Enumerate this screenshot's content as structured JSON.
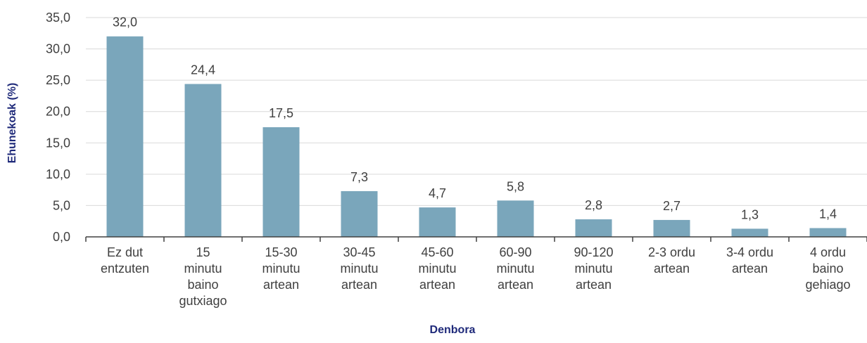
{
  "chart_data": {
    "type": "bar",
    "xlabel": "Denbora",
    "ylabel": "Ehunekoak (%)",
    "ylim": [
      0,
      35
    ],
    "yticks": [
      "0,0",
      "5,0",
      "10,0",
      "15,0",
      "20,0",
      "25,0",
      "30,0",
      "35,0"
    ],
    "grid": true,
    "bar_color": "#7aa6bb",
    "categories": [
      [
        "Ez dut",
        "entzuten"
      ],
      [
        "15",
        "minutu",
        "baino",
        "gutxiago"
      ],
      [
        "15-30",
        "minutu",
        "artean"
      ],
      [
        "30-45",
        "minutu",
        "artean"
      ],
      [
        "45-60",
        "minutu",
        "artean"
      ],
      [
        "60-90",
        "minutu",
        "artean"
      ],
      [
        "90-120",
        "minutu",
        "artean"
      ],
      [
        "2-3 ordu",
        "artean"
      ],
      [
        "3-4 ordu",
        "artean"
      ],
      [
        "4 ordu",
        "baino",
        "gehiago"
      ]
    ],
    "values": [
      32.0,
      24.4,
      17.5,
      7.3,
      4.7,
      5.8,
      2.8,
      2.7,
      1.3,
      1.4
    ],
    "value_labels": [
      "32,0",
      "24,4",
      "17,5",
      "7,3",
      "4,7",
      "5,8",
      "2,8",
      "2,7",
      "1,3",
      "1,4"
    ]
  }
}
